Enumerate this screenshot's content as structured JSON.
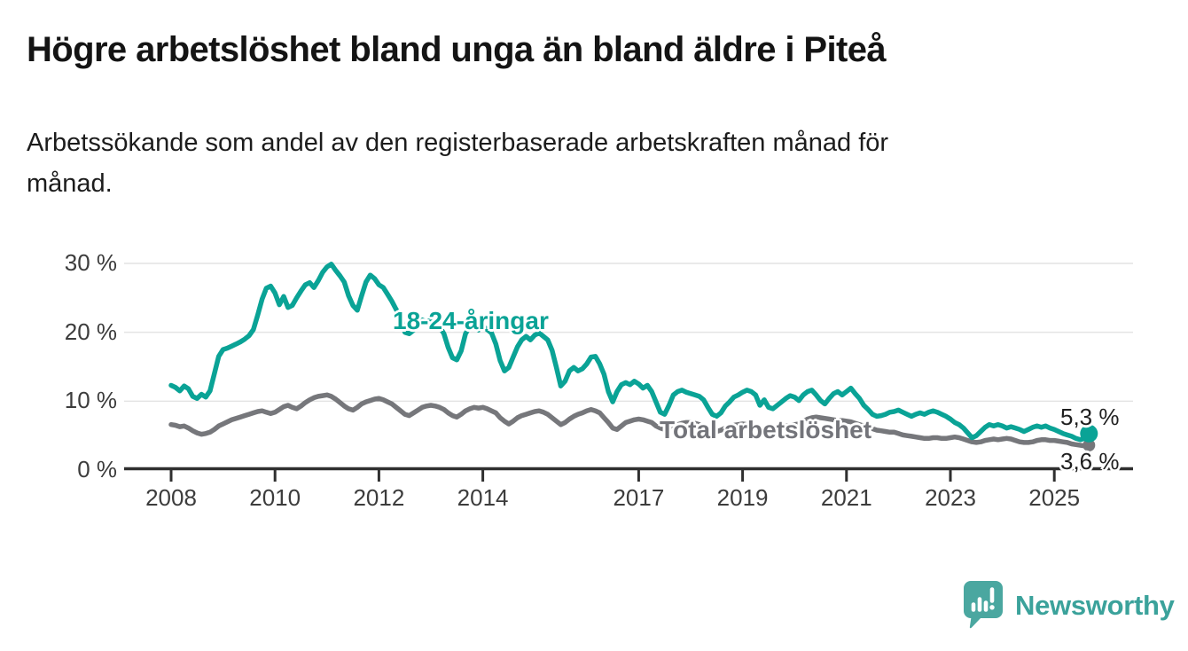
{
  "chart_data": {
    "type": "line",
    "title": "Högre arbetslöshet bland unga än bland äldre i Piteå",
    "subtitle_lines": [
      "Arbetssökande som andel av den registerbaserade arbetskraften månad för",
      "månad."
    ],
    "unit": "%",
    "x_range": {
      "start": "2008-01",
      "end": "2025-09",
      "frequency": "monthly"
    },
    "ylim": [
      0,
      32
    ],
    "grid": "horizontal",
    "legend_position": "inline-labels",
    "y_ticks": [
      {
        "value": 0,
        "label": "0 %"
      },
      {
        "value": 10,
        "label": "10 %"
      },
      {
        "value": 20,
        "label": "20 %"
      },
      {
        "value": 30,
        "label": "30 %"
      }
    ],
    "x_ticks": [
      {
        "year": 2008,
        "label": "2008"
      },
      {
        "year": 2010,
        "label": "2010"
      },
      {
        "year": 2012,
        "label": "2012"
      },
      {
        "year": 2014,
        "label": "2014"
      },
      {
        "year": 2017,
        "label": "2017"
      },
      {
        "year": 2019,
        "label": "2019"
      },
      {
        "year": 2021,
        "label": "2021"
      },
      {
        "year": 2023,
        "label": "2023"
      },
      {
        "year": 2025,
        "label": "2025"
      }
    ],
    "series": [
      {
        "name": "18-24-åringar",
        "color": "#0aa396",
        "end_label": "5,3 %",
        "latest_value": 5.3,
        "values": [
          12.3,
          12.0,
          11.5,
          12.2,
          11.8,
          10.7,
          10.4,
          11.0,
          10.6,
          11.5,
          14.0,
          16.5,
          17.5,
          17.7,
          18.0,
          18.3,
          18.6,
          19.0,
          19.5,
          20.4,
          22.5,
          24.8,
          26.4,
          26.7,
          25.7,
          24.0,
          25.2,
          23.6,
          23.9,
          25.0,
          26.0,
          26.9,
          27.2,
          26.5,
          27.5,
          28.7,
          29.5,
          29.9,
          29.0,
          28.2,
          27.3,
          25.3,
          23.9,
          23.2,
          25.3,
          27.3,
          28.3,
          27.8,
          26.9,
          26.5,
          25.5,
          24.5,
          23.3,
          22.3,
          20.0,
          19.8,
          20.3,
          21.3,
          21.8,
          21.5,
          21.8,
          21.3,
          20.8,
          19.8,
          17.8,
          16.3,
          16.0,
          17.3,
          19.8,
          20.8,
          20.9,
          20.3,
          20.9,
          20.4,
          19.9,
          18.3,
          15.9,
          14.4,
          14.9,
          16.4,
          17.9,
          18.9,
          19.4,
          18.9,
          19.6,
          19.9,
          19.4,
          18.9,
          17.4,
          14.9,
          12.2,
          12.9,
          14.4,
          14.9,
          14.4,
          14.7,
          15.4,
          16.4,
          16.5,
          15.4,
          13.9,
          11.4,
          9.9,
          11.4,
          12.4,
          12.7,
          12.4,
          12.9,
          12.5,
          11.9,
          12.3,
          11.4,
          9.9,
          8.4,
          8.1,
          9.4,
          10.9,
          11.4,
          11.6,
          11.3,
          11.1,
          10.9,
          10.7,
          10.2,
          9.1,
          8.1,
          7.8,
          8.3,
          9.3,
          9.9,
          10.6,
          10.9,
          11.3,
          11.6,
          11.4,
          10.9,
          9.4,
          10.2,
          9.1,
          8.9,
          9.4,
          9.9,
          10.4,
          10.8,
          10.6,
          10.1,
          10.9,
          11.4,
          11.6,
          10.9,
          10.1,
          9.6,
          10.4,
          11.1,
          11.4,
          10.9,
          11.4,
          11.9,
          11.1,
          10.4,
          9.4,
          8.8,
          8.1,
          7.8,
          7.9,
          8.1,
          8.4,
          8.5,
          8.7,
          8.4,
          8.1,
          7.8,
          8.1,
          8.3,
          8.1,
          8.4,
          8.6,
          8.4,
          8.1,
          7.8,
          7.4,
          6.9,
          6.6,
          6.1,
          5.4,
          4.7,
          5.0,
          5.6,
          6.2,
          6.6,
          6.4,
          6.6,
          6.4,
          6.1,
          6.3,
          6.1,
          5.9,
          5.6,
          5.9,
          6.2,
          6.4,
          6.2,
          6.4,
          6.1,
          5.9,
          5.6,
          5.3,
          5.1,
          4.9,
          4.6,
          4.4,
          4.6,
          5.3
        ]
      },
      {
        "name": "Total arbetslöshet",
        "color": "#76777b",
        "end_label": "3,6 %",
        "latest_value": 3.6,
        "values": [
          6.6,
          6.5,
          6.3,
          6.4,
          6.1,
          5.7,
          5.4,
          5.2,
          5.3,
          5.5,
          5.9,
          6.4,
          6.7,
          7.0,
          7.3,
          7.5,
          7.7,
          7.9,
          8.1,
          8.3,
          8.5,
          8.6,
          8.4,
          8.2,
          8.4,
          8.8,
          9.2,
          9.4,
          9.1,
          8.9,
          9.3,
          9.8,
          10.2,
          10.5,
          10.7,
          10.8,
          10.9,
          10.7,
          10.3,
          9.8,
          9.3,
          8.9,
          8.7,
          9.1,
          9.6,
          9.9,
          10.1,
          10.3,
          10.4,
          10.2,
          9.9,
          9.6,
          9.1,
          8.6,
          8.1,
          7.9,
          8.3,
          8.7,
          9.1,
          9.3,
          9.4,
          9.3,
          9.1,
          8.8,
          8.3,
          7.9,
          7.7,
          8.1,
          8.6,
          8.9,
          9.1,
          9.0,
          9.1,
          8.9,
          8.6,
          8.3,
          7.6,
          7.1,
          6.7,
          7.1,
          7.6,
          7.9,
          8.1,
          8.3,
          8.5,
          8.6,
          8.4,
          8.1,
          7.6,
          7.1,
          6.6,
          6.9,
          7.4,
          7.8,
          8.1,
          8.3,
          8.6,
          8.8,
          8.6,
          8.3,
          7.6,
          6.9,
          6.1,
          5.9,
          6.4,
          6.9,
          7.1,
          7.3,
          7.4,
          7.3,
          7.1,
          6.9,
          6.4,
          6.1,
          5.9,
          6.1,
          6.4,
          6.6,
          6.8,
          6.9,
          6.9,
          6.8,
          6.6,
          6.4,
          6.1,
          5.8,
          5.6,
          5.8,
          6.1,
          6.3,
          6.5,
          6.6,
          6.7,
          6.6,
          6.5,
          6.3,
          6.0,
          5.8,
          5.7,
          5.8,
          6.0,
          6.2,
          6.4,
          6.5,
          6.6,
          6.7,
          7.0,
          7.4,
          7.6,
          7.7,
          7.6,
          7.5,
          7.4,
          7.3,
          7.2,
          7.2,
          7.1,
          7.0,
          6.8,
          6.6,
          6.4,
          6.2,
          6.0,
          5.8,
          5.7,
          5.6,
          5.5,
          5.5,
          5.3,
          5.1,
          5.0,
          4.9,
          4.8,
          4.7,
          4.6,
          4.6,
          4.7,
          4.7,
          4.6,
          4.6,
          4.7,
          4.8,
          4.7,
          4.5,
          4.3,
          4.1,
          4.0,
          4.1,
          4.3,
          4.4,
          4.5,
          4.4,
          4.5,
          4.6,
          4.5,
          4.3,
          4.1,
          4.0,
          4.0,
          4.1,
          4.3,
          4.4,
          4.4,
          4.3,
          4.3,
          4.2,
          4.1,
          4.0,
          3.8,
          3.7,
          3.6,
          3.5,
          3.6
        ]
      }
    ]
  },
  "branding": {
    "name": "Newsworthy",
    "logo_icon": "bar-chart-exclamation-speech-bubble",
    "icon_color": "#4aa7a0",
    "text_color": "#3ba29b"
  },
  "colors": {
    "accent_teal": "#0aa396",
    "series_gray": "#76777b",
    "axis": "#2f2f2f",
    "gridline": "#e4e4e4",
    "tick_label": "#3c3c3c",
    "title_text": "#141414"
  }
}
